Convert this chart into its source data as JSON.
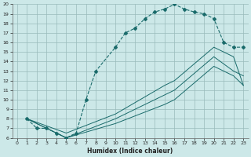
{
  "xlabel": "Humidex (Indice chaleur)",
  "bg_color": "#cce8e8",
  "grid_color": "#99bbbb",
  "line_color": "#1a6b6b",
  "xlim": [
    -0.5,
    23.5
  ],
  "ylim": [
    6,
    20
  ],
  "xticks": [
    0,
    1,
    2,
    3,
    4,
    5,
    6,
    7,
    8,
    9,
    10,
    11,
    12,
    13,
    14,
    15,
    16,
    17,
    18,
    19,
    20,
    21,
    22,
    23
  ],
  "yticks": [
    6,
    7,
    8,
    9,
    10,
    11,
    12,
    13,
    14,
    15,
    16,
    17,
    18,
    19,
    20
  ],
  "line1_x": [
    1,
    2,
    3,
    4,
    5,
    6,
    7,
    8,
    10,
    11,
    12,
    13,
    14,
    15,
    16,
    17,
    18,
    19,
    20,
    21,
    22,
    23
  ],
  "line1_y": [
    8,
    7,
    7,
    6.5,
    6,
    6.5,
    10,
    13,
    15.5,
    17,
    17.5,
    18.5,
    19.2,
    19.5,
    20,
    19.5,
    19.2,
    19,
    18.5,
    16,
    15.5,
    15.5
  ],
  "line2_x": [
    1,
    5,
    10,
    15,
    16,
    20,
    22,
    23
  ],
  "line2_y": [
    8,
    6,
    7.5,
    9.5,
    10,
    13.5,
    12.5,
    11.5
  ],
  "line3_x": [
    1,
    5,
    10,
    15,
    16,
    20,
    22,
    23
  ],
  "line3_y": [
    8,
    6,
    8.0,
    10.5,
    11,
    14.5,
    13.0,
    12.5
  ],
  "line4_x": [
    1,
    5,
    10,
    15,
    16,
    20,
    22,
    23
  ],
  "line4_y": [
    8,
    6.5,
    8.5,
    11.5,
    12,
    15.5,
    14.5,
    11.5
  ]
}
